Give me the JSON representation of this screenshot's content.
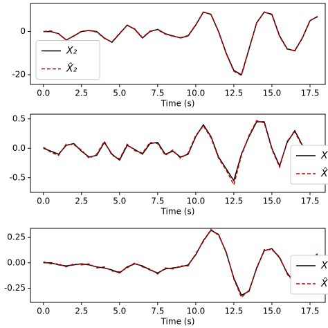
{
  "chart_data": [
    {
      "type": "line",
      "xlabel": "Time (s)",
      "x": [
        0,
        0.5,
        1,
        1.5,
        2,
        2.5,
        3,
        3.5,
        4,
        4.5,
        5,
        5.5,
        6,
        6.5,
        7,
        7.5,
        8,
        8.5,
        9,
        9.5,
        10,
        10.5,
        11,
        11.5,
        12,
        12.5,
        13,
        13.5,
        14,
        14.5,
        15,
        15.5,
        16,
        16.5,
        17,
        17.5,
        18
      ],
      "series": [
        {
          "name": "X₂",
          "color": "#000000",
          "dashed": false,
          "values": [
            0,
            0,
            -1,
            -4,
            -2,
            0,
            0.5,
            0,
            -3,
            -5,
            -1,
            3,
            1,
            -3,
            0,
            1,
            -1,
            -2,
            -3,
            -2,
            3,
            9,
            8,
            0,
            -10,
            -18,
            -20,
            -8,
            4,
            9,
            8,
            -2,
            -8,
            -9,
            -3,
            5,
            7
          ]
        },
        {
          "name": "X̂₂",
          "color": "#c00000",
          "dashed": true,
          "values": [
            0,
            0.3,
            -1.2,
            -3.8,
            -2.2,
            0.2,
            0.4,
            -0.2,
            -3.2,
            -4.8,
            -0.8,
            2.8,
            1.2,
            -2.8,
            0.2,
            0.8,
            -1.2,
            -2.2,
            -2.8,
            -1.8,
            3.2,
            9.2,
            7.8,
            -0.3,
            -10.3,
            -18.4,
            -20.3,
            -8.3,
            4.2,
            9.1,
            7.7,
            -2.3,
            -8.2,
            -8.8,
            -2.8,
            5.2,
            6.8
          ]
        }
      ],
      "xlim": [
        -0.85,
        18.5
      ],
      "ylim": [
        -24.5,
        13
      ],
      "xticks": [
        {
          "value": 0,
          "label": "0.0"
        },
        {
          "value": 2.5,
          "label": "2.5"
        },
        {
          "value": 5,
          "label": "5.0"
        },
        {
          "value": 7.5,
          "label": "7.5"
        },
        {
          "value": 10,
          "label": "10.0"
        },
        {
          "value": 12.5,
          "label": "12.5"
        },
        {
          "value": 15,
          "label": "15.0"
        },
        {
          "value": 17.5,
          "label": "17.5"
        }
      ],
      "yticks": [
        -20,
        0
      ],
      "legend": "left"
    },
    {
      "type": "line",
      "xlabel": "Time (s)",
      "x": [
        0,
        0.5,
        1,
        1.5,
        2,
        2.5,
        3,
        3.5,
        4,
        4.5,
        5,
        5.5,
        6,
        6.5,
        7,
        7.5,
        8,
        8.5,
        9,
        9.5,
        10,
        10.5,
        11,
        11.5,
        12,
        12.5,
        13,
        13.5,
        14,
        14.5,
        15,
        15.5,
        16,
        16.5,
        17,
        17.5,
        18
      ],
      "series": [
        {
          "name": "X",
          "color": "#000000",
          "dashed": false,
          "values": [
            0,
            -0.05,
            -0.1,
            0.05,
            0.08,
            -0.05,
            -0.15,
            -0.12,
            0.1,
            -0.1,
            -0.2,
            0.05,
            -0.02,
            -0.1,
            0.08,
            0.1,
            -0.1,
            -0.05,
            -0.15,
            -0.1,
            0.2,
            0.4,
            0.2,
            -0.15,
            -0.35,
            -0.55,
            -0.1,
            0.2,
            0.45,
            0.45,
            0,
            -0.3,
            0.1,
            0.3,
            0.05,
            -0.3,
            -0.2
          ]
        },
        {
          "name": "X̂",
          "color": "#c00000",
          "dashed": true,
          "values": [
            0.02,
            -0.07,
            -0.12,
            0.07,
            0.06,
            -0.03,
            -0.17,
            -0.1,
            0.12,
            -0.12,
            -0.18,
            0.07,
            -0.04,
            -0.08,
            0.1,
            0.08,
            -0.12,
            -0.03,
            -0.17,
            -0.08,
            0.22,
            0.38,
            0.18,
            -0.17,
            -0.37,
            -0.62,
            -0.12,
            0.22,
            0.47,
            0.43,
            -0.02,
            -0.32,
            0.12,
            0.28,
            0.03,
            -0.32,
            -0.18
          ]
        }
      ],
      "xlim": [
        -0.85,
        18.5
      ],
      "ylim": [
        -0.75,
        0.58
      ],
      "xticks": [
        {
          "value": 0,
          "label": "0.0"
        },
        {
          "value": 2.5,
          "label": "2.5"
        },
        {
          "value": 5,
          "label": "5.0"
        },
        {
          "value": 7.5,
          "label": "7.5"
        },
        {
          "value": 10,
          "label": "10.0"
        },
        {
          "value": 12.5,
          "label": "12.5"
        },
        {
          "value": 15,
          "label": "15.0"
        },
        {
          "value": 17.5,
          "label": "17.5"
        }
      ],
      "yticks": [
        -0.5,
        {
          "value": 0,
          "label": "0.0"
        },
        0.5
      ],
      "legend": "right"
    },
    {
      "type": "line",
      "xlabel": "Time (s)",
      "x": [
        0,
        0.5,
        1,
        1.5,
        2,
        2.5,
        3,
        3.5,
        4,
        4.5,
        5,
        5.5,
        6,
        6.5,
        7,
        7.5,
        8,
        8.5,
        9,
        9.5,
        10,
        10.5,
        11,
        11.5,
        12,
        12.5,
        13,
        13.5,
        14,
        14.5,
        15,
        15.5,
        16,
        16.5,
        17,
        17.5,
        18
      ],
      "series": [
        {
          "name": "X",
          "color": "#000000",
          "dashed": false,
          "values": [
            0,
            0,
            -0.02,
            -0.03,
            -0.02,
            -0.01,
            -0.02,
            -0.04,
            -0.05,
            -0.07,
            -0.1,
            -0.04,
            -0.01,
            -0.03,
            -0.07,
            -0.1,
            -0.06,
            -0.05,
            -0.04,
            -0.02,
            0.08,
            0.22,
            0.32,
            0.28,
            0.1,
            -0.15,
            -0.32,
            -0.28,
            -0.05,
            0.12,
            0.14,
            0.05,
            -0.1,
            -0.2,
            -0.1,
            0.05,
            0.08
          ]
        },
        {
          "name": "X̂",
          "color": "#c00000",
          "dashed": true,
          "values": [
            0.01,
            -0.01,
            -0.01,
            -0.04,
            -0.01,
            -0.02,
            -0.01,
            -0.05,
            -0.04,
            -0.08,
            -0.09,
            -0.05,
            0,
            -0.04,
            -0.06,
            -0.11,
            -0.05,
            -0.06,
            -0.03,
            -0.03,
            0.09,
            0.21,
            0.33,
            0.27,
            0.11,
            -0.16,
            -0.34,
            -0.27,
            -0.06,
            0.13,
            0.13,
            0.06,
            -0.11,
            -0.21,
            -0.09,
            0.04,
            0.09
          ]
        }
      ],
      "xlim": [
        -0.85,
        18.5
      ],
      "ylim": [
        -0.39,
        0.34
      ],
      "xticks": [
        {
          "value": 0,
          "label": "0.0"
        },
        {
          "value": 2.5,
          "label": "2.5"
        },
        {
          "value": 5,
          "label": "5.0"
        },
        {
          "value": 7.5,
          "label": "7.5"
        },
        {
          "value": 10,
          "label": "10.0"
        },
        {
          "value": 12.5,
          "label": "12.5"
        },
        {
          "value": 15,
          "label": "15.0"
        },
        {
          "value": 17.5,
          "label": "17.5"
        }
      ],
      "yticks": [
        -0.25,
        {
          "value": 0,
          "label": "0.00"
        },
        0.25
      ],
      "legend": "right"
    }
  ]
}
